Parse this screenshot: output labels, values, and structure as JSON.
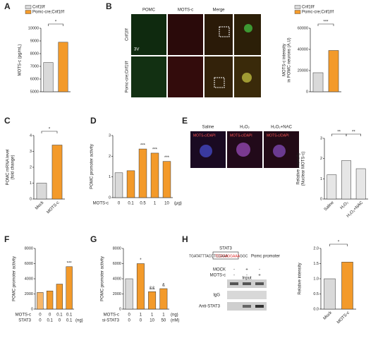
{
  "panel_letters": [
    "A",
    "B",
    "C",
    "D",
    "E",
    "F",
    "G",
    "H"
  ],
  "image_B": {
    "columns": [
      "POMC",
      "MOTS-c",
      "Merge"
    ],
    "rows": [
      "Crif1f/f",
      "Pomc-cre;Crif1f/f"
    ],
    "region": "3V"
  },
  "image_E": {
    "columns": [
      "Saline",
      "H₂O₂",
      "H₂O₂+NAC"
    ],
    "stain": "MOTS-c/DAPI"
  },
  "blot_H": {
    "protein": "STAT3",
    "sequence_left": "TGATATTTACCTCCAAA",
    "sequence_box": "TCCCAGGAAA",
    "sequence_right": "GGC",
    "target": "Pomc promoter",
    "conditions": [
      {
        "name": "MOCK",
        "labels": [
          "-",
          "+",
          "-"
        ]
      },
      {
        "name": "MOTS-c",
        "labels": [
          "-",
          "-",
          "+"
        ]
      }
    ],
    "lanes": [
      "Input",
      "IgG",
      "Anti-STAT3"
    ]
  },
  "chart_data": [
    {
      "type": "bar",
      "ylabel": [
        "MOTS-c (pg/mL)"
      ],
      "categories": [
        "Crif1f/f",
        "Pomc-cre;Crif1f/f"
      ],
      "legend": true,
      "values": [
        7300,
        8900
      ],
      "colors": [
        "#d9d9d9",
        "#f39a2a"
      ],
      "ylim": [
        5000,
        10000
      ],
      "yticks": [
        5000,
        6000,
        7000,
        8000,
        9000,
        10000
      ],
      "significance": "*"
    },
    {
      "type": "bar",
      "ylabel": [
        "MOTS-c intensity",
        "in POMC neurons (A.U)"
      ],
      "categories": [
        "Crif1f/f",
        "Pomc-cre;Crif1f/f"
      ],
      "legend": true,
      "values": [
        18000,
        39000
      ],
      "colors": [
        "#d9d9d9",
        "#f39a2a"
      ],
      "ylim": [
        0,
        60000
      ],
      "yticks": [
        0,
        20000,
        40000,
        60000
      ],
      "significance": "***"
    },
    {
      "type": "bar",
      "ylabel": [
        "POMC mRNA level",
        "(fold change)"
      ],
      "categories": [
        "Mock",
        "MOTS-c"
      ],
      "values": [
        1,
        3.4
      ],
      "colors": [
        "#d9d9d9",
        "#f39a2a"
      ],
      "ylim": [
        0,
        4
      ],
      "yticks": [
        0,
        1,
        2,
        3,
        4
      ],
      "significance": "*"
    },
    {
      "type": "bar",
      "ylabel": [
        "POMC promoter activity"
      ],
      "rows": [
        {
          "name": "MOTS-c",
          "labels": [
            "0",
            "0.1",
            "0.5",
            "1",
            "10"
          ],
          "unit": "(μg)"
        }
      ],
      "values": [
        1.2,
        1.3,
        2.35,
        2.15,
        1.75
      ],
      "colors": [
        "#d9d9d9",
        "#f39a2a",
        "#f39a2a",
        "#f39a2a",
        "#f39a2a"
      ],
      "ylim": [
        0,
        3
      ],
      "yticks": [
        0,
        1,
        2,
        3
      ],
      "bar_labels": [
        null,
        null,
        "***",
        "***",
        "***"
      ]
    },
    {
      "type": "bar",
      "ylabel": [
        "Relative intensity",
        "(Nuclear MOTS-c)"
      ],
      "categories": [
        "Saline",
        "H₂O₂",
        "H₂O₂+NAC"
      ],
      "values": [
        1.2,
        1.9,
        1.5
      ],
      "colors": [
        "#e6e6e6",
        "#e6e6e6",
        "#e6e6e6"
      ],
      "ylim": [
        0,
        3
      ],
      "yticks": [
        0,
        1,
        2,
        3
      ],
      "significance": [
        "**",
        "**"
      ]
    },
    {
      "type": "bar",
      "ylabel": [
        "POMC promoter activity"
      ],
      "rows": [
        {
          "name": "MOTS-c",
          "labels": [
            "0",
            "0",
            "0.1",
            "0.1"
          ]
        },
        {
          "name": "STAT3",
          "labels": [
            "0",
            "0.1",
            "0",
            "0.1"
          ],
          "unit": "(ng)"
        }
      ],
      "values": [
        2200,
        2400,
        3300,
        5600
      ],
      "colors": [
        "#f7b76a",
        "#f39a2a",
        "#f39a2a",
        "#f39a2a"
      ],
      "ylim": [
        0,
        8000
      ],
      "yticks": [
        0,
        2000,
        4000,
        6000,
        8000
      ],
      "bar_labels": [
        null,
        null,
        null,
        "***"
      ]
    },
    {
      "type": "bar",
      "ylabel": [
        "POMC promoter activity"
      ],
      "rows": [
        {
          "name": "MOTS-c",
          "labels": [
            "0",
            "1",
            "1",
            "1"
          ],
          "unit": "(ng)"
        },
        {
          "name": "si-STAT3",
          "labels": [
            "0",
            "0",
            "10",
            "50"
          ],
          "unit": "(nM)"
        }
      ],
      "values": [
        4000,
        6000,
        2300,
        2700
      ],
      "colors": [
        "#d9d9d9",
        "#f39a2a",
        "#f39a2a",
        "#f39a2a"
      ],
      "ylim": [
        0,
        8000
      ],
      "yticks": [
        0,
        2000,
        4000,
        6000,
        8000
      ],
      "bar_labels": [
        null,
        "*",
        "&&",
        "&"
      ]
    },
    {
      "type": "bar",
      "ylabel": [
        "Relative intensity"
      ],
      "categories": [
        "Mock",
        "MOTS-c"
      ],
      "values": [
        1.0,
        1.55
      ],
      "colors": [
        "#d9d9d9",
        "#f39a2a"
      ],
      "ylim": [
        0,
        2
      ],
      "yticks": [
        {
          "value": 0,
          "label": "0.0"
        },
        {
          "value": 0.5,
          "label": "0.5"
        },
        {
          "value": 1,
          "label": "1.0"
        },
        {
          "value": 1.5,
          "label": "1.5"
        },
        {
          "value": 2,
          "label": "2.0"
        }
      ],
      "significance": "*"
    }
  ]
}
